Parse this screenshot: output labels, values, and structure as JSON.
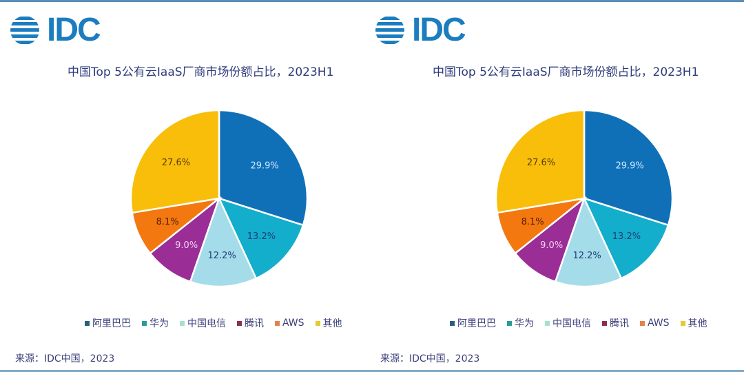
{
  "logo": {
    "text": "IDC",
    "color": "#1b7dc0"
  },
  "panels": [
    {
      "title": "中国Top 5公有云IaaS厂商市场份额占比，2023H1",
      "source": "来源：IDC中国，2023"
    },
    {
      "title": "中国Top 5公有云IaaS厂商市场份额占比，2023H1",
      "source": "来源：IDC中国，2023"
    }
  ],
  "chart_data": [
    {
      "type": "pie",
      "title": "中国Top 5公有云IaaS厂商市场份额占比，2023H1",
      "start_angle": "12 o'clock, clockwise",
      "legend_position": "bottom",
      "slices": [
        {
          "label": "阿里巴巴",
          "value": 29.9,
          "display": "29.9%",
          "color": "#0f70b8",
          "label_color": "#cfe8ff",
          "legend_color": "#2a5f7c"
        },
        {
          "label": "华为",
          "value": 13.2,
          "display": "13.2%",
          "color": "#13aecb",
          "label_color": "#1d3f78",
          "legend_color": "#2a9a9a"
        },
        {
          "label": "中国电信",
          "value": 12.2,
          "display": "12.2%",
          "color": "#a4dcea",
          "label_color": "#1d3f78",
          "legend_color": "#a8e0d0"
        },
        {
          "label": "腾讯",
          "value": 9.0,
          "display": "9.0%",
          "color": "#9a2d96",
          "label_color": "#f3d3f0",
          "legend_color": "#8a3050"
        },
        {
          "label": "AWS",
          "value": 8.1,
          "display": "8.1%",
          "color": "#f2780f",
          "label_color": "#5a1e08",
          "legend_color": "#e2844a"
        },
        {
          "label": "其他",
          "value": 27.6,
          "display": "27.6%",
          "color": "#f8be0a",
          "label_color": "#5a3e08",
          "legend_color": "#e8c830"
        }
      ],
      "source": "来源：IDC中国，2023"
    },
    {
      "type": "pie",
      "title": "中国Top 5公有云IaaS厂商市场份额占比，2023H1",
      "start_angle": "12 o'clock, clockwise",
      "legend_position": "bottom",
      "slices": [
        {
          "label": "阿里巴巴",
          "value": 29.9,
          "display": "29.9%",
          "color": "#0f70b8",
          "label_color": "#cfe8ff",
          "legend_color": "#2a5f7c"
        },
        {
          "label": "华为",
          "value": 13.2,
          "display": "13.2%",
          "color": "#13aecb",
          "label_color": "#1d3f78",
          "legend_color": "#2a9a9a"
        },
        {
          "label": "中国电信",
          "value": 12.2,
          "display": "12.2%",
          "color": "#a4dcea",
          "label_color": "#1d3f78",
          "legend_color": "#a8e0d0"
        },
        {
          "label": "腾讯",
          "value": 9.0,
          "display": "9.0%",
          "color": "#9a2d96",
          "label_color": "#f3d3f0",
          "legend_color": "#8a3050"
        },
        {
          "label": "AWS",
          "value": 8.1,
          "display": "8.1%",
          "color": "#f2780f",
          "label_color": "#5a1e08",
          "legend_color": "#e2844a"
        },
        {
          "label": "其他",
          "value": 27.6,
          "display": "27.6%",
          "color": "#f8be0a",
          "label_color": "#5a3e08",
          "legend_color": "#e8c830"
        }
      ],
      "source": "来源：IDC中国，2023"
    }
  ]
}
